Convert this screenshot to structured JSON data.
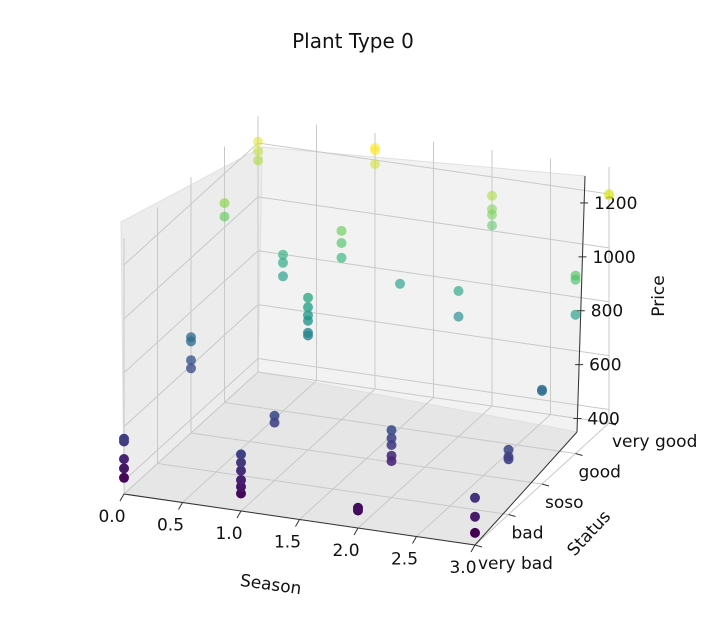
{
  "chart_data": {
    "type": "scatter",
    "projection": "3d",
    "title": "Plant Type 0",
    "xlabel": "Season",
    "ylabel": "Status",
    "zlabel": "Price",
    "xlim": [
      0,
      3
    ],
    "zlim": [
      350,
      1300
    ],
    "x_ticks": [
      "0.0",
      "0.5",
      "1.0",
      "1.5",
      "2.0",
      "2.5",
      "3.0"
    ],
    "y_ticks": [
      "very bad",
      "bad",
      "soso",
      "good",
      "very good"
    ],
    "z_ticks": [
      "400",
      "600",
      "800",
      "1000",
      "1200"
    ],
    "colormap": "viridis",
    "grid": true,
    "points": [
      {
        "season": 0,
        "status": "very bad",
        "price": 410
      },
      {
        "season": 0,
        "status": "very bad",
        "price": 445
      },
      {
        "season": 0,
        "status": "very bad",
        "price": 480
      },
      {
        "season": 0,
        "status": "very bad",
        "price": 545
      },
      {
        "season": 0,
        "status": "very bad",
        "price": 555
      },
      {
        "season": 1,
        "status": "very bad",
        "price": 415
      },
      {
        "season": 1,
        "status": "very bad",
        "price": 440
      },
      {
        "season": 1,
        "status": "very bad",
        "price": 465
      },
      {
        "season": 1,
        "status": "very bad",
        "price": 500
      },
      {
        "season": 1,
        "status": "very bad",
        "price": 530
      },
      {
        "season": 1,
        "status": "very bad",
        "price": 560
      },
      {
        "season": 2,
        "status": "very bad",
        "price": 415
      },
      {
        "season": 2,
        "status": "very bad",
        "price": 425
      },
      {
        "season": 3,
        "status": "very bad",
        "price": 395
      },
      {
        "season": 3,
        "status": "very bad",
        "price": 455
      },
      {
        "season": 3,
        "status": "very bad",
        "price": 525
      },
      {
        "season": 0,
        "status": "very good",
        "price": 1135
      },
      {
        "season": 0,
        "status": "very good",
        "price": 1170
      },
      {
        "season": 0,
        "status": "very good",
        "price": 1205
      },
      {
        "season": 1,
        "status": "very good",
        "price": 1185
      },
      {
        "season": 1,
        "status": "very good",
        "price": 1235
      },
      {
        "season": 1,
        "status": "very good",
        "price": 1245
      },
      {
        "season": 2,
        "status": "very good",
        "price": 1020
      },
      {
        "season": 2,
        "status": "very good",
        "price": 1060
      },
      {
        "season": 2,
        "status": "very good",
        "price": 1080
      },
      {
        "season": 2,
        "status": "very good",
        "price": 1130
      },
      {
        "season": 3,
        "status": "very good",
        "price": 1195
      },
      {
        "season": 3,
        "status": "very good",
        "price": 1200
      },
      {
        "season": 0,
        "status": "good",
        "price": 1040
      },
      {
        "season": 0,
        "status": "good",
        "price": 1090
      },
      {
        "season": 0.5,
        "status": "good",
        "price": 930
      },
      {
        "season": 0.5,
        "status": "good",
        "price": 900
      },
      {
        "season": 0.5,
        "status": "good",
        "price": 850
      },
      {
        "season": 1,
        "status": "good",
        "price": 950
      },
      {
        "season": 1,
        "status": "good",
        "price": 1005
      },
      {
        "season": 1,
        "status": "good",
        "price": 1050
      },
      {
        "season": 1.5,
        "status": "good",
        "price": 885
      },
      {
        "season": 2,
        "status": "good",
        "price": 795
      },
      {
        "season": 2,
        "status": "good",
        "price": 890
      },
      {
        "season": 3,
        "status": "good",
        "price": 865
      },
      {
        "season": 3,
        "status": "good",
        "price": 995
      },
      {
        "season": 3,
        "status": "good",
        "price": 1010
      },
      {
        "season": 0,
        "status": "soso",
        "price": 705
      },
      {
        "season": 0,
        "status": "soso",
        "price": 690
      },
      {
        "season": 0,
        "status": "soso",
        "price": 620
      },
      {
        "season": 0,
        "status": "soso",
        "price": 590
      },
      {
        "season": 1,
        "status": "soso",
        "price": 830
      },
      {
        "season": 1,
        "status": "soso",
        "price": 850
      },
      {
        "season": 1,
        "status": "soso",
        "price": 880
      },
      {
        "season": 1,
        "status": "soso",
        "price": 915
      },
      {
        "season": 1,
        "status": "soso",
        "price": 785
      },
      {
        "season": 1,
        "status": "soso",
        "price": 775
      },
      {
        "season": 3,
        "status": "soso",
        "price": 700
      },
      {
        "season": 3,
        "status": "soso",
        "price": 695
      },
      {
        "season": 1,
        "status": "bad",
        "price": 590
      },
      {
        "season": 1,
        "status": "bad",
        "price": 565
      },
      {
        "season": 2,
        "status": "bad",
        "price": 600
      },
      {
        "season": 2,
        "status": "bad",
        "price": 570
      },
      {
        "season": 2,
        "status": "bad",
        "price": 545
      },
      {
        "season": 2,
        "status": "bad",
        "price": 505
      },
      {
        "season": 2,
        "status": "bad",
        "price": 485
      },
      {
        "season": 3,
        "status": "bad",
        "price": 590
      },
      {
        "season": 3,
        "status": "bad",
        "price": 565
      },
      {
        "season": 3,
        "status": "bad",
        "price": 555
      }
    ]
  },
  "viridis_stops": [
    "#440154",
    "#482878",
    "#3e4989",
    "#31688e",
    "#26828e",
    "#1f9e89",
    "#35b779",
    "#6ece58",
    "#b5de2b",
    "#fde725"
  ]
}
